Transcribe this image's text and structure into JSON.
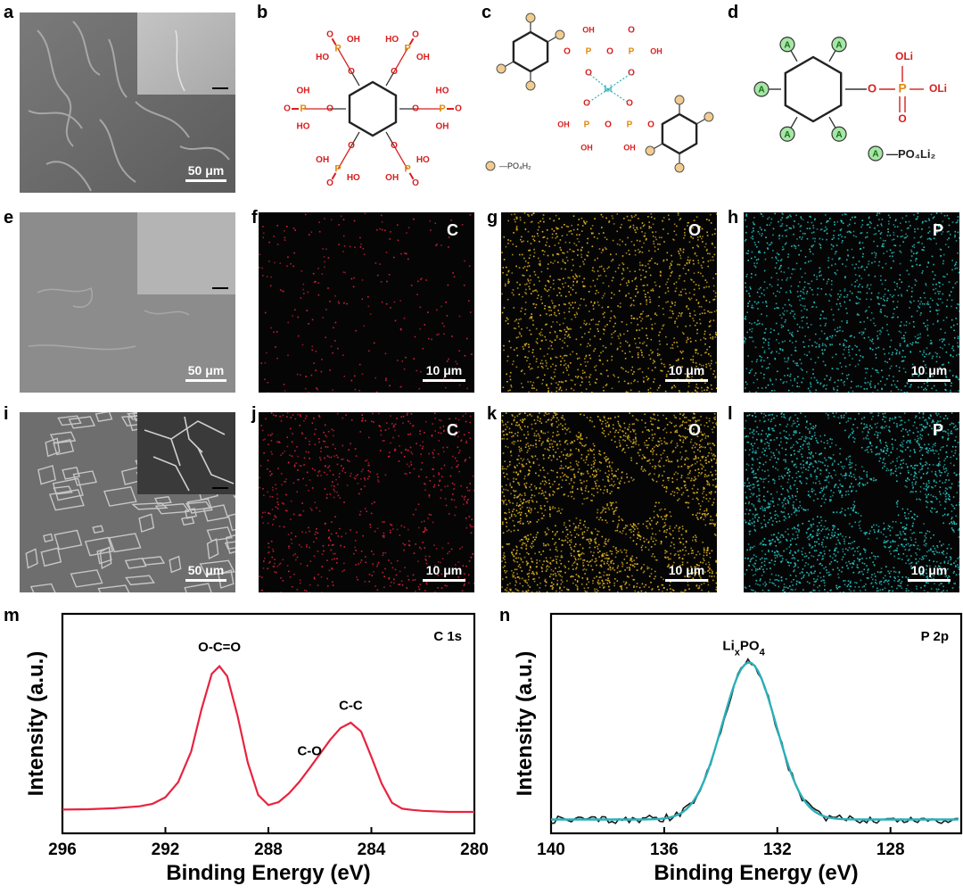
{
  "panel_letters": [
    "a",
    "b",
    "c",
    "d",
    "e",
    "f",
    "g",
    "h",
    "i",
    "j",
    "k",
    "l",
    "m",
    "n"
  ],
  "colors": {
    "sem_gray": "#8a8a8a",
    "eds_bg": "#050505",
    "carbon": "#e0203a",
    "oxygen": "#e6b81e",
    "phosphorus": "#28c8c8",
    "phosphate_atom": "#e08a10",
    "oxygen_atom": "#d81e1e",
    "xps_c1s_line": "#e8233f",
    "xps_p2p_raw": "#1a1a1a",
    "xps_p2p_fit": "#2ab0b8",
    "lithium": "#2ab0b8",
    "legend_circle_c": "#f2cc8f",
    "legend_circle_d": "#a6e6a6"
  },
  "sem": {
    "a": {
      "scale_label": "50 μm"
    },
    "e": {
      "scale_label": "50 μm"
    },
    "i": {
      "scale_label": "50 μm"
    }
  },
  "eds": {
    "f": {
      "element": "C",
      "scale_label": "10 μm"
    },
    "g": {
      "element": "O",
      "scale_label": "10 μm"
    },
    "h": {
      "element": "P",
      "scale_label": "10 μm"
    },
    "j": {
      "element": "C",
      "scale_label": "10 μm"
    },
    "k": {
      "element": "O",
      "scale_label": "10 μm"
    },
    "l": {
      "element": "P",
      "scale_label": "10 μm"
    }
  },
  "structures": {
    "b": {
      "groups": [
        "OH",
        "P",
        "O",
        "HO"
      ]
    },
    "c": {
      "atoms": [
        "OH",
        "P",
        "O",
        "Li"
      ],
      "legend_text": "—PO₄H₂"
    },
    "d": {
      "atoms": [
        "OLi",
        "P",
        "O",
        "A"
      ],
      "legend_text": "—PO₄Li₂"
    }
  },
  "chart_data": [
    {
      "type": "line",
      "panel": "m",
      "title": "C 1s",
      "xlabel": "Binding Energy (eV)",
      "ylabel": "Intensity (a.u.)",
      "xlim": [
        296,
        280
      ],
      "x_ticks": [
        296,
        292,
        288,
        284,
        280
      ],
      "reversed_x": true,
      "annotations": [
        {
          "text": "O-C=O",
          "x": 289.9
        },
        {
          "text": "C-O",
          "x": 286.4
        },
        {
          "text": "C-C",
          "x": 284.8
        }
      ],
      "series": [
        {
          "x": [
            296,
            295,
            294,
            293,
            292.5,
            292,
            291.5,
            291,
            290.6,
            290.2,
            289.9,
            289.6,
            289.2,
            288.8,
            288.4,
            288,
            287.6,
            287.2,
            286.8,
            286.4,
            286,
            285.6,
            285.2,
            284.8,
            284.4,
            284,
            283.6,
            283.2,
            282.8,
            282.4,
            282,
            281,
            280
          ],
          "y": [
            0.08,
            0.085,
            0.09,
            0.1,
            0.12,
            0.16,
            0.26,
            0.45,
            0.72,
            0.95,
            1.0,
            0.93,
            0.68,
            0.38,
            0.18,
            0.11,
            0.13,
            0.19,
            0.26,
            0.35,
            0.44,
            0.53,
            0.6,
            0.64,
            0.58,
            0.42,
            0.25,
            0.13,
            0.09,
            0.08,
            0.075,
            0.07,
            0.07
          ]
        }
      ]
    },
    {
      "type": "line",
      "panel": "n",
      "title": "P 2p",
      "xlabel": "Binding Energy (eV)",
      "ylabel": "Intensity (a.u.)",
      "xlim": [
        140,
        125.5
      ],
      "x_ticks": [
        140,
        136,
        132,
        128
      ],
      "reversed_x": true,
      "annotations": [
        {
          "text": "LixPO4",
          "x": 133.0
        }
      ],
      "peak": {
        "center": 133.0,
        "sigma": 0.95,
        "height": 1.0,
        "baseline": 0.02
      },
      "series": [
        {
          "kind": "raw"
        },
        {
          "kind": "fit"
        }
      ]
    }
  ]
}
